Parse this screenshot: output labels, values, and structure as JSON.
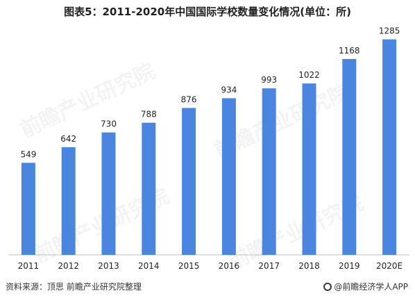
{
  "title": "图表5：2011-2020年中国国际学校数量变化情况(单位：所)",
  "source": "资料来源：顶思 前瞻产业研究院整理",
  "brand": "@前瞻经济学人APP",
  "watermark": "前瞻产业研究院",
  "colors": {
    "bar": "#4a86e0",
    "axis": "#bfbfbf",
    "text": "#222222"
  },
  "chart_data": {
    "type": "bar",
    "title": "图表5：2011-2020年中国国际学校数量变化情况(单位：所)",
    "categories": [
      "2011",
      "2012",
      "2013",
      "2014",
      "2015",
      "2016",
      "2017",
      "2018",
      "2019",
      "2020E"
    ],
    "values": [
      549,
      642,
      730,
      788,
      876,
      934,
      993,
      1022,
      1168,
      1285
    ],
    "xlabel": "",
    "ylabel": "",
    "ylim": [
      0,
      1450
    ],
    "grid": false,
    "data_labels": true
  }
}
